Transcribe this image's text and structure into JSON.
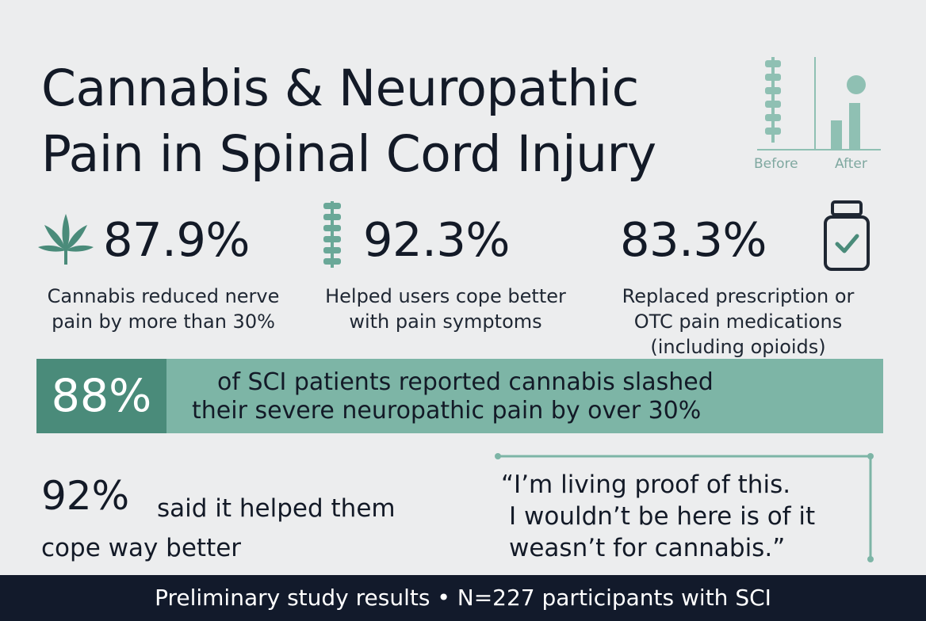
{
  "title": {
    "line1": "Cannabis & Neuropathic",
    "line2": "Pain in Spinal Cord Injury"
  },
  "chart_icon": {
    "before_label": "Before",
    "after_label": "After"
  },
  "stats": [
    {
      "value": "87.9%",
      "icon": "cannabis-leaf-icon",
      "desc1": "Cannabis reduced nerve",
      "desc2": "pain by more than 30%"
    },
    {
      "value": "92.3%",
      "icon": "spine-icon",
      "desc1": "Helped users cope better",
      "desc2": "with pain symptoms"
    },
    {
      "value": "83.3%",
      "icon": "medicine-bottle-icon",
      "desc1": "Replaced prescription or",
      "desc2": "OTC pain medications",
      "desc3": "(including opioids)"
    }
  ],
  "banner": {
    "value": "88%",
    "line1": "of SCI patients  reported cannabis slashed",
    "line2": "their severe neuropathic pain by over 30%"
  },
  "cope": {
    "value": "92%",
    "text1": "said it helped them",
    "text2": "cope way better"
  },
  "quote": {
    "line1": "“I’m living proof of this.",
    "line2": "I wouldn’t be here is of it",
    "line3": "weasn’t for cannabis.”"
  },
  "footer": {
    "text": "Preliminary study results • N=227 participants with SCI"
  },
  "colors": {
    "accent": "#4a8b7a",
    "accent_light": "#7db5a6",
    "icon": "#8fc0b3",
    "dark": "#121a2b",
    "background": "#ecedee"
  }
}
